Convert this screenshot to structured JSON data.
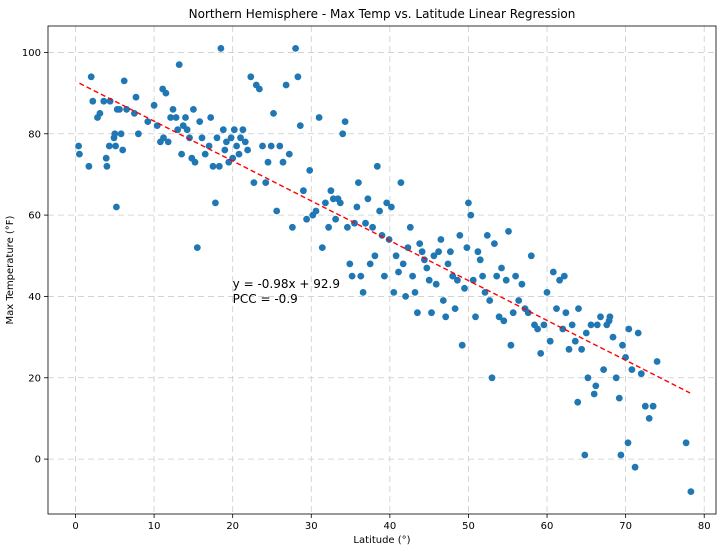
{
  "chart_data": {
    "type": "scatter",
    "title": "Northern Hemisphere - Max Temp vs. Latitude Linear Regression",
    "xlabel": "Latitude (°)",
    "ylabel": "Max Temperature (°F)",
    "xlim": [
      -3.5,
      81.5
    ],
    "ylim": [
      -13.5,
      106.5
    ],
    "x_ticks": [
      0,
      10,
      20,
      30,
      40,
      50,
      60,
      70,
      80
    ],
    "y_ticks": [
      0,
      20,
      40,
      60,
      80,
      100
    ],
    "grid": true,
    "marker_color": "#1f77b4",
    "regression": {
      "slope": -0.98,
      "intercept": 92.9,
      "x_range": [
        0.5,
        78.2
      ],
      "color": "#ff0000",
      "style": "dashed",
      "equation": "y = -0.98x + 92.9",
      "pcc": "PCC = -0.9",
      "label_at": [
        20,
        43
      ]
    },
    "points": [
      [
        0.4,
        77
      ],
      [
        0.5,
        75
      ],
      [
        1.7,
        72
      ],
      [
        2,
        94
      ],
      [
        2.2,
        88
      ],
      [
        2.8,
        84
      ],
      [
        3.1,
        85
      ],
      [
        3.6,
        88
      ],
      [
        3.9,
        74
      ],
      [
        4,
        72
      ],
      [
        4.3,
        77
      ],
      [
        4.4,
        88
      ],
      [
        4.9,
        79
      ],
      [
        5,
        80
      ],
      [
        5.1,
        77
      ],
      [
        5.2,
        62
      ],
      [
        5.3,
        86
      ],
      [
        5.6,
        86
      ],
      [
        5.8,
        80
      ],
      [
        6,
        76
      ],
      [
        6.2,
        93
      ],
      [
        6.5,
        86
      ],
      [
        7.5,
        85
      ],
      [
        7.7,
        89
      ],
      [
        8,
        80
      ],
      [
        9.2,
        83
      ],
      [
        10,
        87
      ],
      [
        10.4,
        82
      ],
      [
        10.8,
        78
      ],
      [
        11.1,
        91
      ],
      [
        11.2,
        79
      ],
      [
        11.5,
        90
      ],
      [
        11.8,
        78
      ],
      [
        12.1,
        84
      ],
      [
        12.4,
        86
      ],
      [
        12.8,
        84
      ],
      [
        13,
        81
      ],
      [
        13.2,
        97
      ],
      [
        13.5,
        75
      ],
      [
        13.7,
        82
      ],
      [
        14,
        84
      ],
      [
        14.2,
        81
      ],
      [
        14.5,
        79
      ],
      [
        14.8,
        74
      ],
      [
        15,
        86
      ],
      [
        15.2,
        73
      ],
      [
        15.5,
        52
      ],
      [
        15.8,
        83
      ],
      [
        16.1,
        79
      ],
      [
        16.5,
        75
      ],
      [
        17,
        77
      ],
      [
        17.2,
        84
      ],
      [
        17.5,
        72
      ],
      [
        17.8,
        63
      ],
      [
        18,
        79
      ],
      [
        18.3,
        72
      ],
      [
        18.5,
        101
      ],
      [
        18.8,
        81
      ],
      [
        19,
        76
      ],
      [
        19.2,
        78
      ],
      [
        19.5,
        73
      ],
      [
        19.8,
        79
      ],
      [
        20,
        74
      ],
      [
        20.2,
        81
      ],
      [
        20.5,
        77
      ],
      [
        20.8,
        75
      ],
      [
        21,
        79
      ],
      [
        21.3,
        81
      ],
      [
        21.6,
        78
      ],
      [
        21.9,
        76
      ],
      [
        22.3,
        94
      ],
      [
        22.7,
        68
      ],
      [
        23,
        92
      ],
      [
        23.4,
        91
      ],
      [
        23.8,
        77
      ],
      [
        24.2,
        68
      ],
      [
        24.5,
        73
      ],
      [
        24.9,
        77
      ],
      [
        25.2,
        85
      ],
      [
        25.6,
        61
      ],
      [
        26,
        77
      ],
      [
        26.4,
        73
      ],
      [
        26.8,
        92
      ],
      [
        27.2,
        75
      ],
      [
        27.6,
        57
      ],
      [
        28,
        101
      ],
      [
        28.3,
        94
      ],
      [
        28.6,
        82
      ],
      [
        29,
        66
      ],
      [
        29.4,
        59
      ],
      [
        29.8,
        71
      ],
      [
        30.2,
        60
      ],
      [
        30.6,
        61
      ],
      [
        31,
        84
      ],
      [
        31.4,
        52
      ],
      [
        31.8,
        63
      ],
      [
        32.2,
        57
      ],
      [
        32.5,
        66
      ],
      [
        32.8,
        64
      ],
      [
        33.1,
        59
      ],
      [
        33.4,
        64
      ],
      [
        33.7,
        63
      ],
      [
        34,
        80
      ],
      [
        34.3,
        83
      ],
      [
        34.6,
        57
      ],
      [
        34.9,
        48
      ],
      [
        35.2,
        45
      ],
      [
        35.5,
        58
      ],
      [
        35.8,
        62
      ],
      [
        36,
        68
      ],
      [
        36.3,
        45
      ],
      [
        36.6,
        41
      ],
      [
        36.9,
        58
      ],
      [
        37.2,
        64
      ],
      [
        37.5,
        48
      ],
      [
        37.8,
        57
      ],
      [
        38.1,
        50
      ],
      [
        38.4,
        72
      ],
      [
        38.7,
        61
      ],
      [
        39,
        55
      ],
      [
        39.3,
        45
      ],
      [
        39.6,
        63
      ],
      [
        39.9,
        54
      ],
      [
        40.2,
        62
      ],
      [
        40.5,
        41
      ],
      [
        40.8,
        50
      ],
      [
        41.1,
        46
      ],
      [
        41.4,
        68
      ],
      [
        41.7,
        48
      ],
      [
        42,
        40
      ],
      [
        42.3,
        52
      ],
      [
        42.6,
        57
      ],
      [
        42.9,
        45
      ],
      [
        43.2,
        41
      ],
      [
        43.5,
        36
      ],
      [
        43.8,
        53
      ],
      [
        44.1,
        51
      ],
      [
        44.4,
        49
      ],
      [
        44.7,
        47
      ],
      [
        45,
        44
      ],
      [
        45.3,
        36
      ],
      [
        45.6,
        50
      ],
      [
        45.9,
        43
      ],
      [
        46.2,
        51
      ],
      [
        46.5,
        54
      ],
      [
        46.8,
        39
      ],
      [
        47.1,
        35
      ],
      [
        47.4,
        48
      ],
      [
        47.7,
        51
      ],
      [
        48,
        45
      ],
      [
        48.3,
        37
      ],
      [
        48.6,
        44
      ],
      [
        48.9,
        55
      ],
      [
        49.2,
        28
      ],
      [
        49.5,
        42
      ],
      [
        49.8,
        52
      ],
      [
        50,
        63
      ],
      [
        50.3,
        60
      ],
      [
        50.6,
        44
      ],
      [
        50.9,
        35
      ],
      [
        51.2,
        51
      ],
      [
        51.5,
        49
      ],
      [
        51.8,
        45
      ],
      [
        52.1,
        41
      ],
      [
        52.4,
        55
      ],
      [
        52.7,
        39
      ],
      [
        53,
        20
      ],
      [
        53.3,
        53
      ],
      [
        53.6,
        45
      ],
      [
        53.9,
        35
      ],
      [
        54.2,
        47
      ],
      [
        54.5,
        34
      ],
      [
        54.8,
        44
      ],
      [
        55.1,
        56
      ],
      [
        55.4,
        28
      ],
      [
        55.7,
        36
      ],
      [
        56,
        45
      ],
      [
        56.4,
        39
      ],
      [
        56.8,
        43
      ],
      [
        57.2,
        37
      ],
      [
        57.6,
        36
      ],
      [
        58,
        50
      ],
      [
        58.4,
        33
      ],
      [
        58.8,
        32
      ],
      [
        59.2,
        26
      ],
      [
        59.6,
        33
      ],
      [
        60,
        41
      ],
      [
        60.4,
        29
      ],
      [
        60.8,
        46
      ],
      [
        61.2,
        37
      ],
      [
        61.6,
        44
      ],
      [
        62,
        32
      ],
      [
        62.4,
        36
      ],
      [
        62.8,
        27
      ],
      [
        63.2,
        33
      ],
      [
        63.6,
        29
      ],
      [
        64,
        37
      ],
      [
        64.4,
        27
      ],
      [
        64.8,
        1
      ],
      [
        65.2,
        20
      ],
      [
        65.6,
        33
      ],
      [
        66,
        16
      ],
      [
        66.4,
        33
      ],
      [
        66.8,
        35
      ],
      [
        67.2,
        22
      ],
      [
        67.6,
        33
      ],
      [
        68,
        35
      ],
      [
        68.4,
        30
      ],
      [
        68.8,
        20
      ],
      [
        69.2,
        15
      ],
      [
        69.6,
        28
      ],
      [
        70,
        25
      ],
      [
        70.4,
        32
      ],
      [
        70.8,
        22
      ],
      [
        71.2,
        -2
      ],
      [
        71.6,
        31
      ],
      [
        72,
        21
      ],
      [
        72.5,
        13
      ],
      [
        73,
        10
      ],
      [
        73.5,
        13
      ],
      [
        74,
        24
      ],
      [
        77.7,
        4
      ],
      [
        78.3,
        -8
      ],
      [
        65,
        31
      ],
      [
        66.2,
        18
      ],
      [
        67.9,
        34
      ],
      [
        69.4,
        1
      ],
      [
        70.3,
        4
      ],
      [
        62.2,
        45
      ],
      [
        63.9,
        14
      ]
    ]
  }
}
